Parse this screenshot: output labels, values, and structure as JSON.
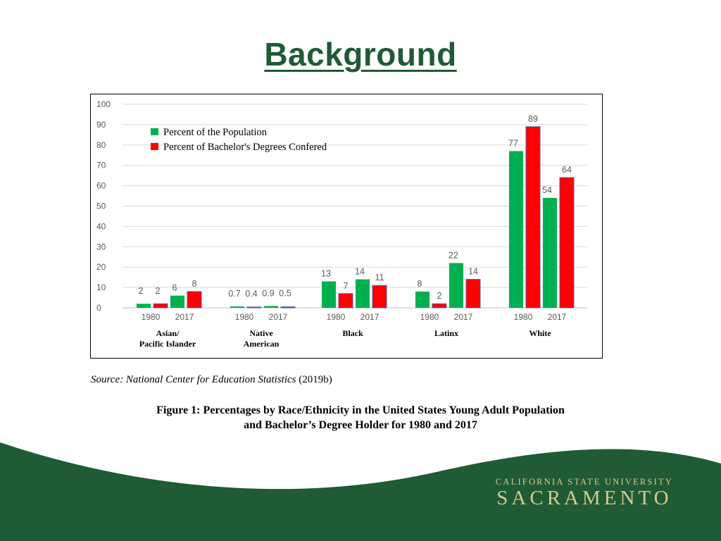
{
  "slide": {
    "title": "Background",
    "source_italic": "Source: National Center for Education Statistics",
    "source_year": "(2019b)",
    "caption_line1": "Figure 1: Percentages by Race/Ethnicity in the United States Young Adult Population",
    "caption_line2": "and Bachelor’s Degree Holder for 1980 and 2017",
    "brand_top": "CALIFORNIA STATE UNIVERSITY",
    "brand_bottom": "SACRAMENTO"
  },
  "colors": {
    "population": "#00b050",
    "degrees": "#ff0000",
    "title": "#1f5b35",
    "footer": "#1f5b35",
    "brand": "#d6c98f"
  },
  "chart_data": {
    "type": "bar",
    "title": "",
    "xlabel": "",
    "ylabel": "",
    "ylim": [
      0,
      100
    ],
    "yticks": [
      0,
      10,
      20,
      30,
      40,
      50,
      60,
      70,
      80,
      90,
      100
    ],
    "grid": true,
    "legend_position": "top-left",
    "legend": [
      "Percent of the Population",
      "Percent of Bachelor's Degrees Confered"
    ],
    "groups": [
      {
        "label": [
          "Asian/",
          "Pacific Islander"
        ],
        "years": [
          {
            "year": "1980",
            "population": 2,
            "degrees": 2
          },
          {
            "year": "2017",
            "population": 6,
            "degrees": 8
          }
        ]
      },
      {
        "label": [
          "Native",
          "American"
        ],
        "years": [
          {
            "year": "1980",
            "population": 0.7,
            "degrees": 0.4
          },
          {
            "year": "2017",
            "population": 0.9,
            "degrees": 0.5
          }
        ]
      },
      {
        "label": [
          "Black"
        ],
        "years": [
          {
            "year": "1980",
            "population": 13,
            "degrees": 7
          },
          {
            "year": "2017",
            "population": 14,
            "degrees": 11
          }
        ]
      },
      {
        "label": [
          "Latinx"
        ],
        "years": [
          {
            "year": "1980",
            "population": 8,
            "degrees": 2
          },
          {
            "year": "2017",
            "population": 22,
            "degrees": 14
          }
        ]
      },
      {
        "label": [
          "White"
        ],
        "years": [
          {
            "year": "1980",
            "population": 77,
            "degrees": 89
          },
          {
            "year": "2017",
            "population": 54,
            "degrees": 64
          }
        ]
      }
    ]
  }
}
